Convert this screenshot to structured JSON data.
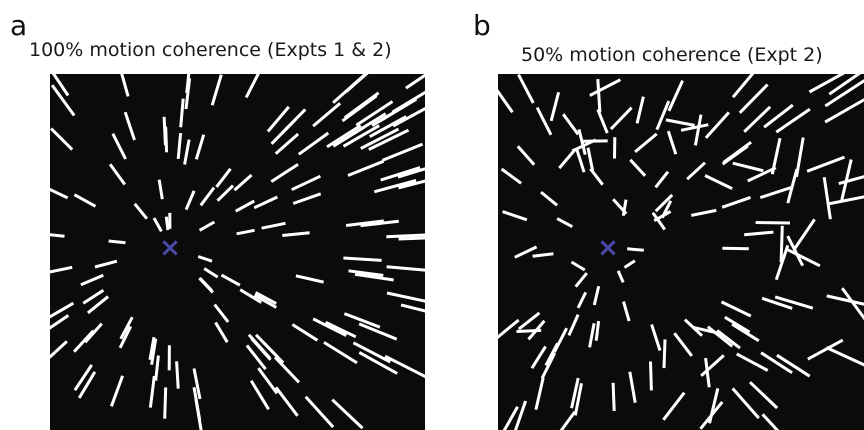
{
  "panels": [
    {
      "letter": "a",
      "title": "100% motion coherence (Expts 1 & 2)",
      "coherence_percent": 100,
      "fixation_symbol": "×"
    },
    {
      "letter": "b",
      "title": "50% motion coherence (Expt 2)",
      "coherence_percent": 50,
      "fixation_symbol": "×"
    }
  ],
  "colors": {
    "background": "#0b0b0b",
    "dot_streak": "#ffffff",
    "fixation": "#4a4aa8"
  },
  "icons": {
    "fixation": "fixation-cross-icon"
  }
}
